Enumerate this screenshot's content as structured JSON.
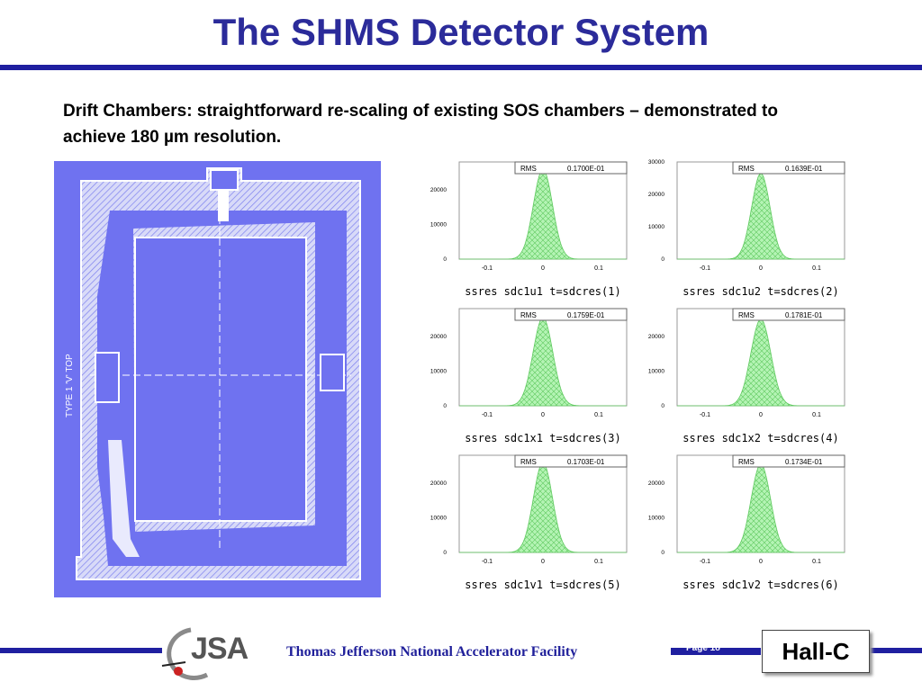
{
  "slide": {
    "title": "The SHMS Detector System",
    "subtitle": "Drift Chambers: straightforward re-scaling of existing SOS chambers – demonstrated to achieve 180 µm resolution.",
    "drawing_label": "TYPE 1 'V' TOP",
    "footer": {
      "logo_text": "JSA",
      "facility": "Thomas Jefferson National Accelerator Facility",
      "page": "Page 18",
      "hall": "Hall-C"
    },
    "colors": {
      "title": "#2b2b9a",
      "rule": "#1f1fa0",
      "drawing_bg": "#6f72f0",
      "histogram_fill": "#a8f0a8"
    }
  },
  "chart_data": [
    {
      "type": "area",
      "title": "ssres sdc1u1 t=sdcres(1)",
      "stat_label": "RMS",
      "stat_value": "0.1700E-01",
      "xlim": [
        -0.15,
        0.15
      ],
      "ylim": [
        0,
        28000
      ],
      "x_ticks": [
        "-0.1",
        "0",
        "0.1"
      ],
      "y_ticks": [
        "0",
        "10000",
        "20000"
      ],
      "rms": 0.017,
      "peak": 26000
    },
    {
      "type": "area",
      "title": "ssres sdc1u2 t=sdcres(2)",
      "stat_label": "RMS",
      "stat_value": "0.1639E-01",
      "xlim": [
        -0.15,
        0.15
      ],
      "ylim": [
        0,
        30000
      ],
      "x_ticks": [
        "-0.1",
        "0",
        "0.1"
      ],
      "y_ticks": [
        "0",
        "10000",
        "20000",
        "30000"
      ],
      "rms": 0.0164,
      "peak": 26500
    },
    {
      "type": "area",
      "title": "ssres sdc1x1 t=sdcres(3)",
      "stat_label": "RMS",
      "stat_value": "0.1759E-01",
      "xlim": [
        -0.15,
        0.15
      ],
      "ylim": [
        0,
        28000
      ],
      "x_ticks": [
        "-0.1",
        "0",
        "0.1"
      ],
      "y_ticks": [
        "0",
        "10000",
        "20000"
      ],
      "rms": 0.0176,
      "peak": 25500
    },
    {
      "type": "area",
      "title": "ssres sdc1x2 t=sdcres(4)",
      "stat_label": "RMS",
      "stat_value": "0.1781E-01",
      "xlim": [
        -0.15,
        0.15
      ],
      "ylim": [
        0,
        28000
      ],
      "x_ticks": [
        "-0.1",
        "0",
        "0.1"
      ],
      "y_ticks": [
        "0",
        "10000",
        "20000"
      ],
      "rms": 0.0178,
      "peak": 25000
    },
    {
      "type": "area",
      "title": "ssres sdc1v1 t=sdcres(5)",
      "stat_label": "RMS",
      "stat_value": "0.1703E-01",
      "xlim": [
        -0.15,
        0.15
      ],
      "ylim": [
        0,
        28000
      ],
      "x_ticks": [
        "-0.1",
        "0",
        "0.1"
      ],
      "y_ticks": [
        "0",
        "10000",
        "20000"
      ],
      "rms": 0.017,
      "peak": 26000
    },
    {
      "type": "area",
      "title": "ssres sdc1v2 t=sdcres(6)",
      "stat_label": "RMS",
      "stat_value": "0.1734E-01",
      "xlim": [
        -0.15,
        0.15
      ],
      "ylim": [
        0,
        28000
      ],
      "x_ticks": [
        "-0.1",
        "0",
        "0.1"
      ],
      "y_ticks": [
        "0",
        "10000",
        "20000"
      ],
      "rms": 0.0173,
      "peak": 25500
    }
  ]
}
